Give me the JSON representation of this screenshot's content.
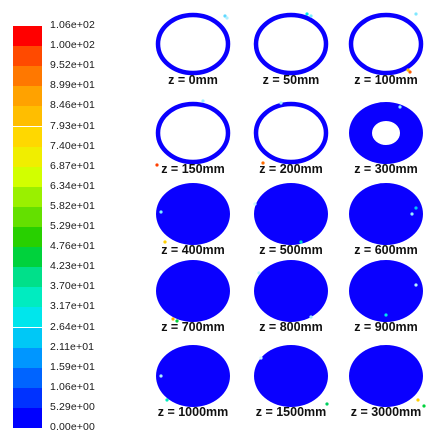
{
  "colorbar": {
    "labels": [
      "1.06e+02",
      "1.00e+02",
      "9.52e+01",
      "8.99e+01",
      "8.46e+01",
      "7.93e+01",
      "7.40e+01",
      "6.87e+01",
      "6.34e+01",
      "5.82e+01",
      "5.29e+01",
      "4.76e+01",
      "4.23e+01",
      "3.70e+01",
      "3.17e+01",
      "2.64e+01",
      "2.11e+01",
      "1.59e+01",
      "1.06e+01",
      "5.29e+00",
      "0.00e+00"
    ],
    "colors": [
      "#ff0000",
      "#ff4a00",
      "#ff7800",
      "#ffa200",
      "#ffbe00",
      "#ffd800",
      "#f0ee00",
      "#d2ff00",
      "#9af000",
      "#64e000",
      "#28d000",
      "#00d23c",
      "#00e08a",
      "#00ecc0",
      "#00e6ec",
      "#00c8f6",
      "#0096ff",
      "#0064ff",
      "#0032ff",
      "#0000ff"
    ]
  },
  "panels": [
    {
      "label": "z = 0mm",
      "kind": "ring"
    },
    {
      "label": "z = 50mm",
      "kind": "ring"
    },
    {
      "label": "z = 100mm",
      "kind": "ring"
    },
    {
      "label": "z = 150mm",
      "kind": "ring"
    },
    {
      "label": "z = 200mm",
      "kind": "ring"
    },
    {
      "label": "z = 300mm",
      "kind": "thick-ring"
    },
    {
      "label": "z = 400mm",
      "kind": "disc"
    },
    {
      "label": "z = 500mm",
      "kind": "disc"
    },
    {
      "label": "z = 600mm",
      "kind": "disc"
    },
    {
      "label": "z = 700mm",
      "kind": "disc"
    },
    {
      "label": "z = 800mm",
      "kind": "disc"
    },
    {
      "label": "z = 900mm",
      "kind": "disc"
    },
    {
      "label": "z = 1000mm",
      "kind": "disc"
    },
    {
      "label": "z = 1500mm",
      "kind": "disc"
    },
    {
      "label": "z = 3000mm",
      "kind": "disc"
    }
  ],
  "field_color": "#0a00ff"
}
